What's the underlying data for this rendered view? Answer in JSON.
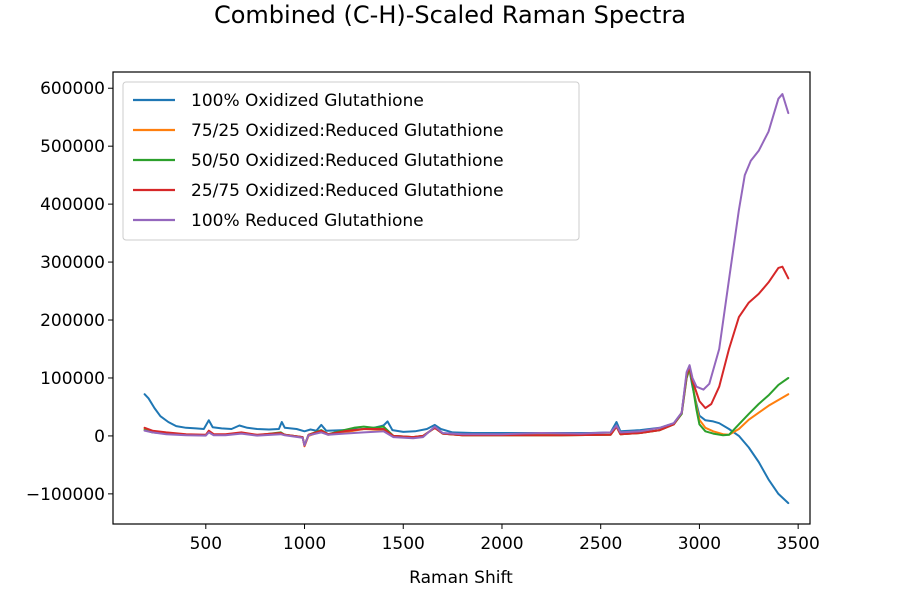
{
  "chart_data": {
    "type": "line",
    "title": "Combined (C-H)-Scaled Raman Spectra",
    "xlabel": "Raman Shift",
    "ylabel": "",
    "xlim": [
      30,
      3560
    ],
    "ylim": [
      -152000,
      628000
    ],
    "x_ticks": [
      500,
      1000,
      1500,
      2000,
      2500,
      3000,
      3500
    ],
    "y_ticks": [
      -100000,
      0,
      100000,
      200000,
      300000,
      400000,
      500000,
      600000
    ],
    "grid": false,
    "legend_position": "upper left",
    "series": [
      {
        "name": "100% Oxidized Glutathione",
        "color": "#1f77b4",
        "points": [
          [
            190,
            72000
          ],
          [
            210,
            65000
          ],
          [
            240,
            48000
          ],
          [
            270,
            34000
          ],
          [
            310,
            24000
          ],
          [
            350,
            17000
          ],
          [
            400,
            14000
          ],
          [
            450,
            13000
          ],
          [
            490,
            12000
          ],
          [
            515,
            27000
          ],
          [
            535,
            15000
          ],
          [
            580,
            13000
          ],
          [
            630,
            12000
          ],
          [
            670,
            18000
          ],
          [
            710,
            14000
          ],
          [
            760,
            12000
          ],
          [
            820,
            11000
          ],
          [
            870,
            12000
          ],
          [
            885,
            24000
          ],
          [
            900,
            14000
          ],
          [
            960,
            12000
          ],
          [
            1000,
            8000
          ],
          [
            1030,
            11000
          ],
          [
            1060,
            9000
          ],
          [
            1085,
            19000
          ],
          [
            1110,
            9000
          ],
          [
            1200,
            10000
          ],
          [
            1300,
            12000
          ],
          [
            1350,
            14000
          ],
          [
            1400,
            18000
          ],
          [
            1420,
            25000
          ],
          [
            1445,
            10000
          ],
          [
            1500,
            7000
          ],
          [
            1560,
            8000
          ],
          [
            1620,
            12000
          ],
          [
            1660,
            19000
          ],
          [
            1690,
            12000
          ],
          [
            1750,
            6000
          ],
          [
            1850,
            5000
          ],
          [
            2000,
            5000
          ],
          [
            2150,
            5000
          ],
          [
            2300,
            5000
          ],
          [
            2450,
            5000
          ],
          [
            2550,
            6000
          ],
          [
            2580,
            24000
          ],
          [
            2600,
            8000
          ],
          [
            2700,
            10000
          ],
          [
            2800,
            14000
          ],
          [
            2870,
            22000
          ],
          [
            2910,
            40000
          ],
          [
            2935,
            105000
          ],
          [
            2950,
            112000
          ],
          [
            2965,
            85000
          ],
          [
            2985,
            55000
          ],
          [
            3000,
            35000
          ],
          [
            3030,
            27000
          ],
          [
            3070,
            25000
          ],
          [
            3100,
            22000
          ],
          [
            3150,
            12000
          ],
          [
            3200,
            0
          ],
          [
            3250,
            -20000
          ],
          [
            3300,
            -45000
          ],
          [
            3350,
            -75000
          ],
          [
            3400,
            -100000
          ],
          [
            3450,
            -116000
          ]
        ]
      },
      {
        "name": "75/25 Oxidized:Reduced Glutathione",
        "color": "#ff7f0e",
        "points": [
          [
            190,
            12000
          ],
          [
            230,
            8000
          ],
          [
            300,
            5000
          ],
          [
            400,
            2000
          ],
          [
            500,
            1000
          ],
          [
            515,
            8000
          ],
          [
            540,
            2000
          ],
          [
            600,
            2000
          ],
          [
            680,
            5000
          ],
          [
            760,
            1000
          ],
          [
            880,
            4000
          ],
          [
            900,
            2000
          ],
          [
            990,
            -2000
          ],
          [
            1000,
            -18000
          ],
          [
            1020,
            0
          ],
          [
            1085,
            8000
          ],
          [
            1120,
            2000
          ],
          [
            1200,
            6000
          ],
          [
            1300,
            12000
          ],
          [
            1400,
            10000
          ],
          [
            1450,
            0
          ],
          [
            1550,
            -2000
          ],
          [
            1600,
            0
          ],
          [
            1660,
            14000
          ],
          [
            1700,
            4000
          ],
          [
            1800,
            1000
          ],
          [
            2000,
            1000
          ],
          [
            2300,
            1000
          ],
          [
            2550,
            2000
          ],
          [
            2580,
            16000
          ],
          [
            2600,
            3000
          ],
          [
            2700,
            5000
          ],
          [
            2800,
            10000
          ],
          [
            2870,
            20000
          ],
          [
            2910,
            38000
          ],
          [
            2935,
            100000
          ],
          [
            2950,
            115000
          ],
          [
            2965,
            90000
          ],
          [
            2985,
            50000
          ],
          [
            3000,
            28000
          ],
          [
            3030,
            14000
          ],
          [
            3070,
            8000
          ],
          [
            3120,
            3000
          ],
          [
            3150,
            2000
          ],
          [
            3200,
            12000
          ],
          [
            3250,
            28000
          ],
          [
            3300,
            40000
          ],
          [
            3350,
            52000
          ],
          [
            3400,
            62000
          ],
          [
            3450,
            72000
          ]
        ]
      },
      {
        "name": "50/50 Oxidized:Reduced Glutathione",
        "color": "#2ca02c",
        "points": [
          [
            190,
            10000
          ],
          [
            230,
            6000
          ],
          [
            300,
            4000
          ],
          [
            400,
            2000
          ],
          [
            500,
            1000
          ],
          [
            515,
            8000
          ],
          [
            540,
            2000
          ],
          [
            600,
            2000
          ],
          [
            680,
            5000
          ],
          [
            760,
            1000
          ],
          [
            880,
            6000
          ],
          [
            900,
            2000
          ],
          [
            990,
            -2000
          ],
          [
            1000,
            -16000
          ],
          [
            1020,
            2000
          ],
          [
            1085,
            10000
          ],
          [
            1120,
            3000
          ],
          [
            1200,
            10000
          ],
          [
            1250,
            14000
          ],
          [
            1300,
            16000
          ],
          [
            1350,
            14000
          ],
          [
            1400,
            16000
          ],
          [
            1450,
            0
          ],
          [
            1550,
            -2000
          ],
          [
            1600,
            0
          ],
          [
            1660,
            14000
          ],
          [
            1700,
            4000
          ],
          [
            1800,
            1000
          ],
          [
            2000,
            1000
          ],
          [
            2300,
            1000
          ],
          [
            2550,
            2000
          ],
          [
            2580,
            16000
          ],
          [
            2600,
            3000
          ],
          [
            2700,
            5000
          ],
          [
            2800,
            10000
          ],
          [
            2870,
            20000
          ],
          [
            2910,
            38000
          ],
          [
            2935,
            100000
          ],
          [
            2950,
            118000
          ],
          [
            2965,
            88000
          ],
          [
            2985,
            45000
          ],
          [
            3000,
            20000
          ],
          [
            3030,
            8000
          ],
          [
            3070,
            4000
          ],
          [
            3120,
            1000
          ],
          [
            3150,
            2000
          ],
          [
            3200,
            20000
          ],
          [
            3250,
            38000
          ],
          [
            3300,
            55000
          ],
          [
            3350,
            70000
          ],
          [
            3400,
            88000
          ],
          [
            3450,
            100000
          ]
        ]
      },
      {
        "name": "25/75 Oxidized:Reduced Glutathione",
        "color": "#d62728",
        "points": [
          [
            190,
            14000
          ],
          [
            230,
            9000
          ],
          [
            300,
            6000
          ],
          [
            400,
            3000
          ],
          [
            500,
            2000
          ],
          [
            515,
            9000
          ],
          [
            540,
            3000
          ],
          [
            600,
            3000
          ],
          [
            680,
            6000
          ],
          [
            760,
            2000
          ],
          [
            880,
            5000
          ],
          [
            900,
            2000
          ],
          [
            990,
            -2000
          ],
          [
            1000,
            -17000
          ],
          [
            1020,
            2000
          ],
          [
            1085,
            9000
          ],
          [
            1120,
            3000
          ],
          [
            1200,
            8000
          ],
          [
            1300,
            12000
          ],
          [
            1400,
            12000
          ],
          [
            1450,
            0
          ],
          [
            1550,
            -2000
          ],
          [
            1600,
            0
          ],
          [
            1660,
            14000
          ],
          [
            1700,
            4000
          ],
          [
            1800,
            1000
          ],
          [
            2000,
            1000
          ],
          [
            2300,
            1000
          ],
          [
            2550,
            2000
          ],
          [
            2580,
            16000
          ],
          [
            2600,
            3000
          ],
          [
            2700,
            5000
          ],
          [
            2800,
            10000
          ],
          [
            2870,
            20000
          ],
          [
            2910,
            40000
          ],
          [
            2935,
            105000
          ],
          [
            2950,
            120000
          ],
          [
            2965,
            95000
          ],
          [
            2985,
            75000
          ],
          [
            3000,
            60000
          ],
          [
            3030,
            48000
          ],
          [
            3060,
            55000
          ],
          [
            3100,
            85000
          ],
          [
            3150,
            150000
          ],
          [
            3200,
            205000
          ],
          [
            3250,
            230000
          ],
          [
            3300,
            245000
          ],
          [
            3350,
            265000
          ],
          [
            3400,
            290000
          ],
          [
            3420,
            292000
          ],
          [
            3450,
            272000
          ]
        ]
      },
      {
        "name": "100% Reduced Glutathione",
        "color": "#9467bd",
        "points": [
          [
            190,
            9000
          ],
          [
            230,
            6000
          ],
          [
            300,
            3000
          ],
          [
            400,
            1000
          ],
          [
            500,
            500
          ],
          [
            515,
            6000
          ],
          [
            540,
            1000
          ],
          [
            600,
            1000
          ],
          [
            680,
            4000
          ],
          [
            760,
            500
          ],
          [
            880,
            3000
          ],
          [
            900,
            1000
          ],
          [
            990,
            -3000
          ],
          [
            1000,
            -16000
          ],
          [
            1020,
            1000
          ],
          [
            1085,
            6000
          ],
          [
            1120,
            2000
          ],
          [
            1200,
            4000
          ],
          [
            1300,
            6000
          ],
          [
            1400,
            8000
          ],
          [
            1450,
            -2000
          ],
          [
            1550,
            -4000
          ],
          [
            1600,
            -2000
          ],
          [
            1660,
            16000
          ],
          [
            1700,
            5000
          ],
          [
            1800,
            3000
          ],
          [
            2000,
            3000
          ],
          [
            2200,
            5000
          ],
          [
            2400,
            4000
          ],
          [
            2550,
            6000
          ],
          [
            2580,
            18000
          ],
          [
            2600,
            6000
          ],
          [
            2700,
            8000
          ],
          [
            2800,
            14000
          ],
          [
            2870,
            22000
          ],
          [
            2910,
            40000
          ],
          [
            2935,
            110000
          ],
          [
            2950,
            122000
          ],
          [
            2965,
            100000
          ],
          [
            2985,
            85000
          ],
          [
            3020,
            80000
          ],
          [
            3050,
            90000
          ],
          [
            3100,
            150000
          ],
          [
            3150,
            270000
          ],
          [
            3200,
            390000
          ],
          [
            3230,
            450000
          ],
          [
            3260,
            475000
          ],
          [
            3300,
            492000
          ],
          [
            3350,
            525000
          ],
          [
            3400,
            582000
          ],
          [
            3420,
            590000
          ],
          [
            3450,
            557000
          ]
        ]
      }
    ]
  }
}
